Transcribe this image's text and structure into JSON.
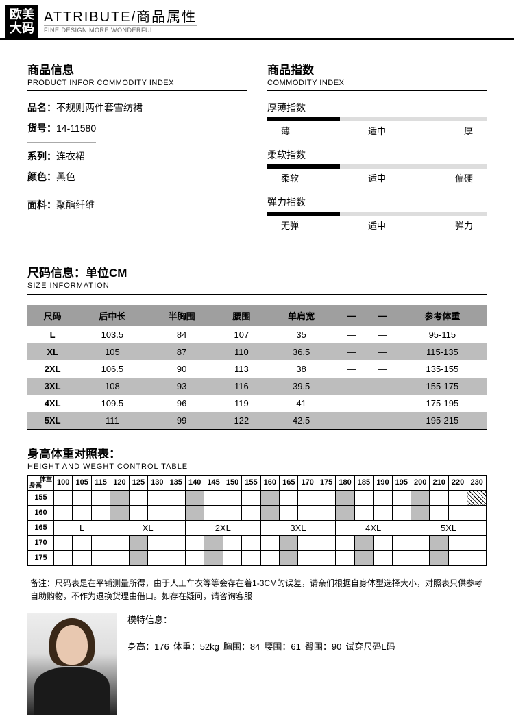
{
  "header": {
    "logo_line1": "欧美",
    "logo_line2": "大码",
    "title": "ATTRIBUTE/商品属性",
    "subtitle": "FINE DESIGN MORE WONDERFUL"
  },
  "productInfo": {
    "title": "商品信息",
    "subtitle": "PRODUCT INFOR COMMODITY INDEX",
    "items": [
      {
        "label": "品名：",
        "value": "不规则两件套雪纺裙"
      },
      {
        "label": "货号：",
        "value": "14-11580"
      },
      {
        "label": "系列：",
        "value": "连衣裙"
      },
      {
        "label": "颜色：",
        "value": "黑色"
      },
      {
        "label": "面料：",
        "value": "聚酯纤维"
      }
    ]
  },
  "commodityIndex": {
    "title": "商品指数",
    "subtitle": "COMMODITY INDEX",
    "indices": [
      {
        "label": "厚薄指数",
        "scale": [
          "薄",
          "适中",
          "厚"
        ],
        "marker_left": 0,
        "marker_width": 33
      },
      {
        "label": "柔软指数",
        "scale": [
          "柔软",
          "适中",
          "偏硬"
        ],
        "marker_left": 0,
        "marker_width": 33
      },
      {
        "label": "弹力指数",
        "scale": [
          "无弹",
          "适中",
          "弹力"
        ],
        "marker_left": 0,
        "marker_width": 33
      }
    ]
  },
  "sizeInfo": {
    "title": "尺码信息：单位CM",
    "subtitle": "SIZE INFORMATION",
    "columns": [
      "尺码",
      "后中长",
      "半胸围",
      "腰围",
      "单肩宽",
      "—",
      "—",
      "参考体重"
    ],
    "rows": [
      [
        "L",
        "103.5",
        "84",
        "107",
        "35",
        "—",
        "—",
        "95-115"
      ],
      [
        "XL",
        "105",
        "87",
        "110",
        "36.5",
        "—",
        "—",
        "115-135"
      ],
      [
        "2XL",
        "106.5",
        "90",
        "113",
        "38",
        "—",
        "—",
        "135-155"
      ],
      [
        "3XL",
        "108",
        "93",
        "116",
        "39.5",
        "—",
        "—",
        "155-175"
      ],
      [
        "4XL",
        "109.5",
        "96",
        "119",
        "41",
        "—",
        "—",
        "175-195"
      ],
      [
        "5XL",
        "111",
        "99",
        "122",
        "42.5",
        "—",
        "—",
        "195-215"
      ]
    ]
  },
  "controlTable": {
    "title": "身高体重对照表：",
    "subtitle": "HEIGHT AND WEGHT CONTROL TABLE",
    "corner_top": "体重",
    "corner_bottom": "身高",
    "weights": [
      "100",
      "105",
      "115",
      "120",
      "125",
      "130",
      "135",
      "140",
      "145",
      "150",
      "155",
      "160",
      "165",
      "170",
      "175",
      "180",
      "185",
      "190",
      "195",
      "200",
      "210",
      "220",
      "230"
    ],
    "heights": [
      "155",
      "160",
      "165",
      "170",
      "175"
    ],
    "sizes": [
      "L",
      "XL",
      "2XL",
      "3XL",
      "4XL",
      "5XL"
    ]
  },
  "note": {
    "prefix": "备注：",
    "text": "尺码表是在平铺测量所得，由于人工车衣等等会存在着1-3CM的误差，请亲们根据自身体型选择大小，对照表只供参考自助购物，不作为退换货理由借口。如存在疑问，请咨询客服"
  },
  "model": {
    "title": "模特信息：",
    "stats": [
      {
        "label": "身高：",
        "value": "176"
      },
      {
        "label": "体重：",
        "value": "52kg"
      },
      {
        "label": "胸围：",
        "value": "84"
      },
      {
        "label": "腰围：",
        "value": "61"
      },
      {
        "label": "臀围：",
        "value": "90"
      },
      {
        "label": "试穿尺码",
        "value": "L码"
      }
    ]
  }
}
